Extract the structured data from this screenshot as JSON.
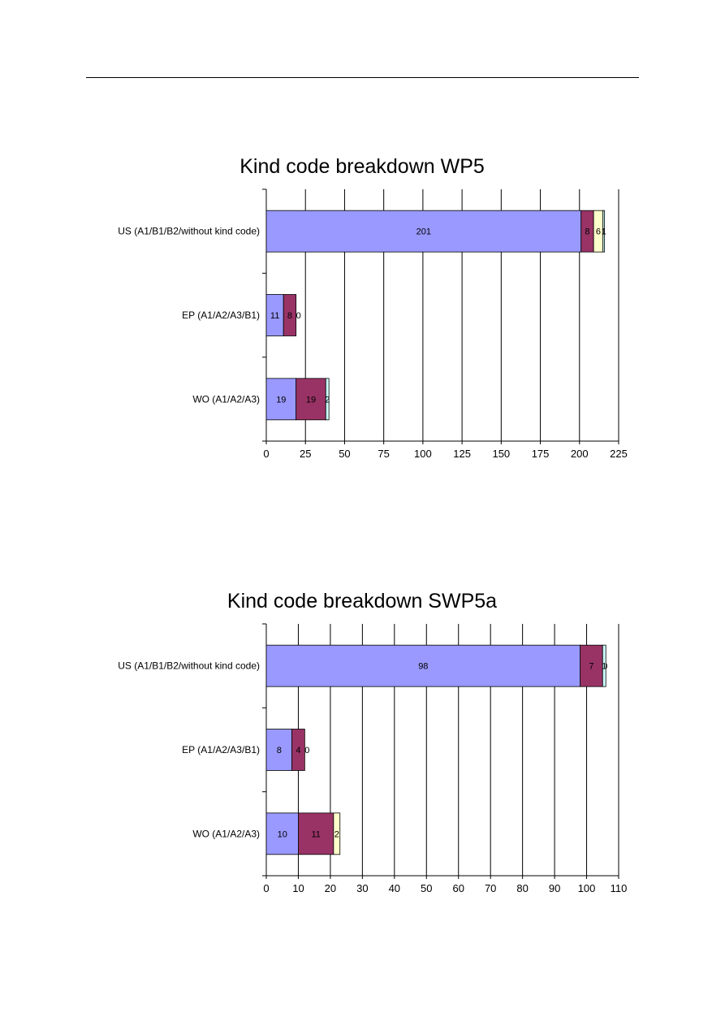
{
  "chart_data": [
    {
      "type": "bar",
      "orientation": "horizontal",
      "stacked": true,
      "title": "Kind code breakdown WP5",
      "categories": [
        "US (A1/B1/B2/without kind code)",
        "EP (A1/A2/A3/B1)",
        "WO (A1/A2/A3)"
      ],
      "series": [
        {
          "values": [
            201,
            11,
            19
          ],
          "color": "#9999ff"
        },
        {
          "values": [
            8,
            8,
            19
          ],
          "color": "#993366"
        },
        {
          "values": [
            6,
            0,
            0
          ],
          "color": "#ffffcc"
        },
        {
          "values": [
            1,
            0,
            2
          ],
          "color": "#ccffff"
        }
      ],
      "data_labels": [
        [
          "201",
          "8",
          "6",
          "1"
        ],
        [
          "11",
          "8",
          "0",
          ""
        ],
        [
          "19",
          "19",
          "",
          "2"
        ]
      ],
      "xlim": [
        0,
        225
      ],
      "xticks": [
        0,
        25,
        50,
        75,
        100,
        125,
        150,
        175,
        200,
        225
      ],
      "xlabel": "",
      "ylabel": "",
      "grid": "vertical",
      "legend": "none"
    },
    {
      "type": "bar",
      "orientation": "horizontal",
      "stacked": true,
      "title": "Kind code breakdown SWP5a",
      "categories": [
        "US (A1/B1/B2/without kind code)",
        "EP (A1/A2/A3/B1)",
        "WO (A1/A2/A3)"
      ],
      "series": [
        {
          "values": [
            98,
            8,
            10
          ],
          "color": "#9999ff"
        },
        {
          "values": [
            7,
            4,
            11
          ],
          "color": "#993366"
        },
        {
          "values": [
            0,
            0,
            2
          ],
          "color": "#ffffcc"
        },
        {
          "values": [
            1,
            0,
            0
          ],
          "color": "#ccffff"
        }
      ],
      "data_labels": [
        [
          "98",
          "7",
          "0",
          "1"
        ],
        [
          "8",
          "4",
          "0",
          ""
        ],
        [
          "10",
          "11",
          "2",
          ""
        ]
      ],
      "xlim": [
        0,
        110
      ],
      "xticks": [
        0,
        10,
        20,
        30,
        40,
        50,
        60,
        70,
        80,
        90,
        100,
        110
      ],
      "xlabel": "",
      "ylabel": "",
      "grid": "vertical",
      "legend": "none"
    }
  ]
}
